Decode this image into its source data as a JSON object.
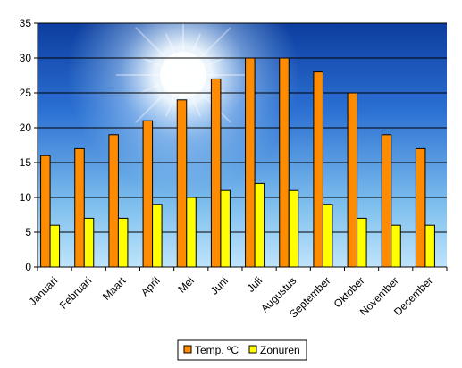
{
  "chart_data": {
    "type": "bar",
    "categories": [
      "Januari",
      "Februari",
      "Maart",
      "April",
      "Mei",
      "Juni",
      "Juli",
      "Augustus",
      "September",
      "Oktober",
      "November",
      "December"
    ],
    "series": [
      {
        "name": "Temp. ºC",
        "values": [
          16,
          17,
          19,
          21,
          24,
          27,
          30,
          30,
          28,
          25,
          19,
          17
        ],
        "color": "#FF8C00"
      },
      {
        "name": "Zonuren",
        "values": [
          6,
          7,
          7,
          9,
          10,
          11,
          12,
          11,
          9,
          7,
          6,
          6
        ],
        "color": "#FFFF00"
      }
    ],
    "ylim": [
      0,
      35
    ],
    "yticks": [
      0,
      5,
      10,
      15,
      20,
      25,
      30,
      35
    ],
    "grid": true,
    "legend": "bottom",
    "background": "sky-with-sun"
  }
}
